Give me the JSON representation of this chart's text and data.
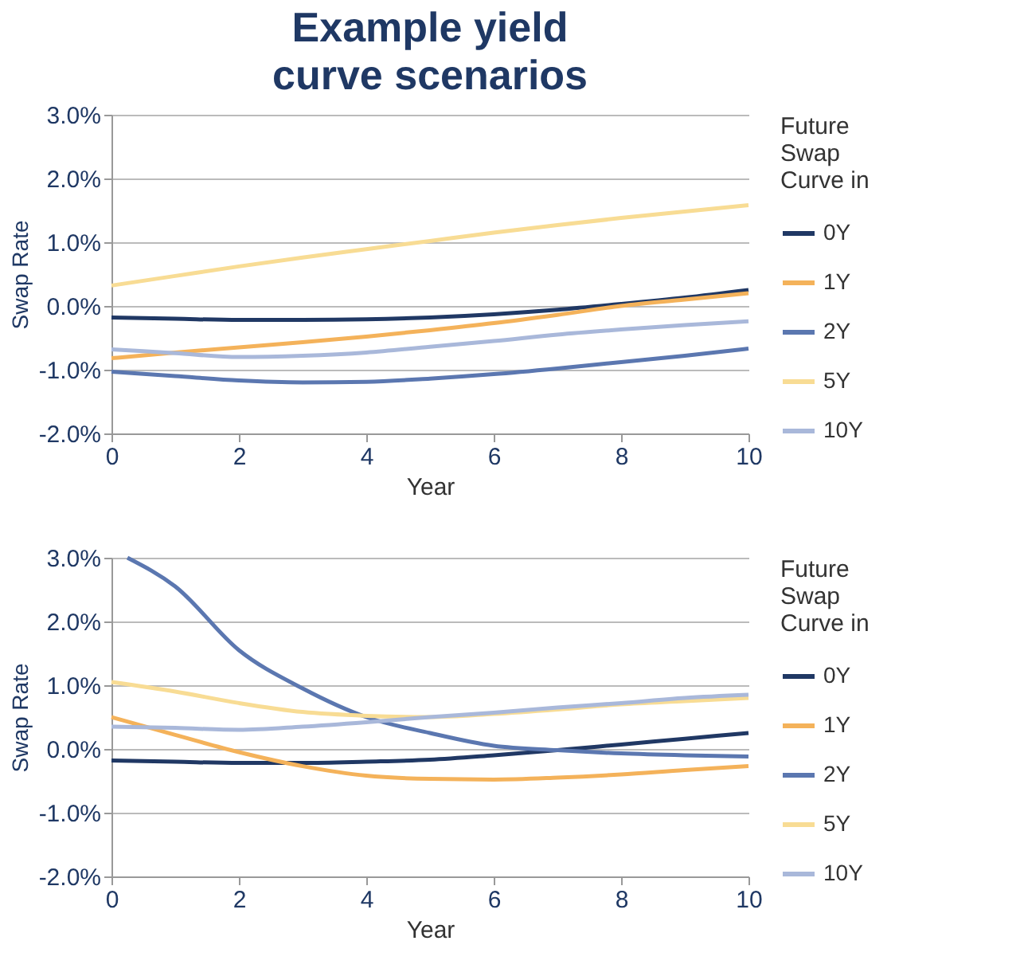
{
  "chart_data": [
    {
      "type": "line",
      "title": "Example yield curve scenarios",
      "xlabel": "Year",
      "ylabel": "Swap Rate",
      "legend_title": "Future\nSwap\nCurve in",
      "legend": "right",
      "grid": "y",
      "x": [
        0,
        1,
        2,
        3,
        4,
        5,
        6,
        7,
        8,
        9,
        10
      ],
      "xlim": [
        0,
        10
      ],
      "xticks": [
        0,
        2,
        4,
        6,
        8,
        10
      ],
      "ylim": [
        -2,
        3
      ],
      "yticks": [
        {
          "value": -2,
          "label": "-2.0%"
        },
        {
          "value": -1,
          "label": "-1.0%"
        },
        {
          "value": 0,
          "label": "0.0%"
        },
        {
          "value": 1,
          "label": "1.0%"
        },
        {
          "value": 2,
          "label": "2.0%"
        },
        {
          "value": 3,
          "label": "3.0%"
        }
      ],
      "series": [
        {
          "name": "0Y",
          "color": "#203864",
          "values": [
            -0.18,
            -0.2,
            -0.22,
            -0.22,
            -0.21,
            -0.18,
            -0.13,
            -0.06,
            0.03,
            0.13,
            0.25
          ]
        },
        {
          "name": "1Y",
          "color": "#f4b25a",
          "values": [
            -0.82,
            -0.73,
            -0.65,
            -0.57,
            -0.48,
            -0.38,
            -0.27,
            -0.14,
            0.0,
            0.1,
            0.2
          ]
        },
        {
          "name": "2Y",
          "color": "#5b77b0",
          "values": [
            -1.03,
            -1.1,
            -1.17,
            -1.2,
            -1.19,
            -1.14,
            -1.07,
            -0.98,
            -0.88,
            -0.78,
            -0.67
          ]
        },
        {
          "name": "5Y",
          "color": "#f8dc94",
          "values": [
            0.32,
            0.47,
            0.62,
            0.76,
            0.89,
            1.02,
            1.15,
            1.27,
            1.38,
            1.48,
            1.58
          ]
        },
        {
          "name": "10Y",
          "color": "#a9b8da",
          "values": [
            -0.68,
            -0.74,
            -0.8,
            -0.78,
            -0.73,
            -0.64,
            -0.55,
            -0.45,
            -0.37,
            -0.3,
            -0.24
          ]
        }
      ]
    },
    {
      "type": "line",
      "xlabel": "Year",
      "ylabel": "Swap Rate",
      "legend_title": "Future\nSwap\nCurve in",
      "legend": "right",
      "grid": "y",
      "x": [
        0,
        1,
        2,
        3,
        4,
        5,
        6,
        7,
        8,
        9,
        10
      ],
      "xlim": [
        0,
        10
      ],
      "xticks": [
        0,
        2,
        4,
        6,
        8,
        10
      ],
      "ylim": [
        -2,
        3
      ],
      "yticks": [
        {
          "value": -2,
          "label": "-2.0%"
        },
        {
          "value": -1,
          "label": "-1.0%"
        },
        {
          "value": 0,
          "label": "0.0%"
        },
        {
          "value": 1,
          "label": "1.0%"
        },
        {
          "value": 2,
          "label": "2.0%"
        },
        {
          "value": 3,
          "label": "3.0%"
        }
      ],
      "series": [
        {
          "name": "0Y",
          "color": "#203864",
          "values": [
            -0.18,
            -0.2,
            -0.22,
            -0.22,
            -0.2,
            -0.17,
            -0.1,
            -0.02,
            0.07,
            0.16,
            0.25
          ]
        },
        {
          "name": "1Y",
          "color": "#f4b25a",
          "values": [
            0.5,
            0.22,
            -0.05,
            -0.27,
            -0.42,
            -0.47,
            -0.48,
            -0.45,
            -0.4,
            -0.33,
            -0.27
          ]
        },
        {
          "name": "2Y",
          "color": "#5b77b0",
          "x": [
            0.25,
            1,
            2,
            3,
            4,
            5,
            6,
            7,
            8,
            9,
            10
          ],
          "values": [
            3.0,
            2.55,
            1.55,
            0.95,
            0.5,
            0.25,
            0.05,
            -0.02,
            -0.07,
            -0.1,
            -0.12
          ]
        },
        {
          "name": "5Y",
          "color": "#f8dc94",
          "values": [
            1.05,
            0.9,
            0.72,
            0.58,
            0.52,
            0.5,
            0.55,
            0.62,
            0.7,
            0.75,
            0.8
          ]
        },
        {
          "name": "10Y",
          "color": "#a9b8da",
          "values": [
            0.35,
            0.33,
            0.3,
            0.35,
            0.42,
            0.5,
            0.57,
            0.65,
            0.72,
            0.8,
            0.85
          ]
        }
      ]
    }
  ]
}
